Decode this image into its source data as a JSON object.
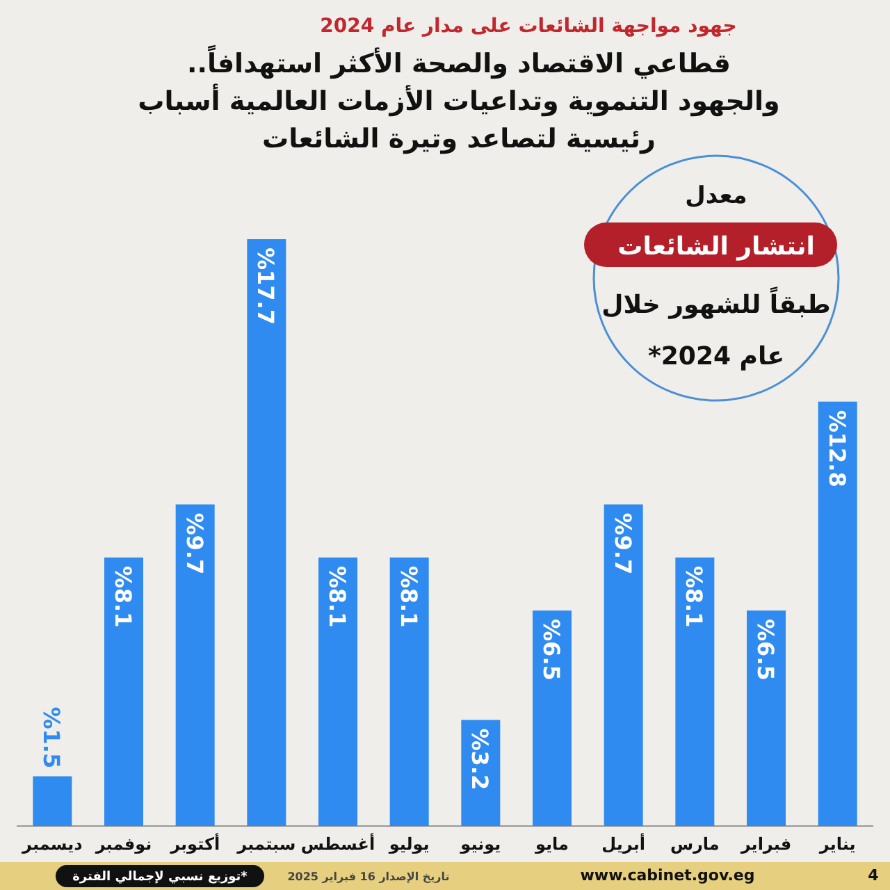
{
  "chart_data": {
    "type": "bar",
    "subtitle": "جهود مواجهة الشائعات على مدار عام 2024",
    "title": "قطاعي الاقتصاد والصحة الأكثر استهدافاً..\nوالجهود التنموية وتداعيات الأزمات العالمية أسباب\nرئيسية لتصاعد وتيرة الشائعات",
    "categories": [
      "ديسمبر",
      "نوفمبر",
      "أكتوبر",
      "سبتمبر",
      "أغسطس",
      "يوليو",
      "يونيو",
      "مايو",
      "أبريل",
      "مارس",
      "فبراير",
      "يناير"
    ],
    "values": [
      1.5,
      8.1,
      9.7,
      17.7,
      8.1,
      8.1,
      3.2,
      6.5,
      9.7,
      8.1,
      6.5,
      12.8
    ],
    "value_labels": [
      "%1.5",
      "%8.1",
      "%9.7",
      "%17.7",
      "%8.1",
      "%8.1",
      "%3.2",
      "%6.5",
      "%9.7",
      "%8.1",
      "%6.5",
      "%12.8"
    ],
    "color": "#2f8bef",
    "grid": false,
    "annotations": [
      "معدل",
      "انتشار الشائعات",
      "طبقاً للشهور خلال",
      "عام 2024*",
      "*توزيع نسبي لإجمالي الفترة",
      "تاريخ الإصدار 16 فبراير 2025",
      "www.cabinet.gov.eg",
      "4"
    ]
  }
}
